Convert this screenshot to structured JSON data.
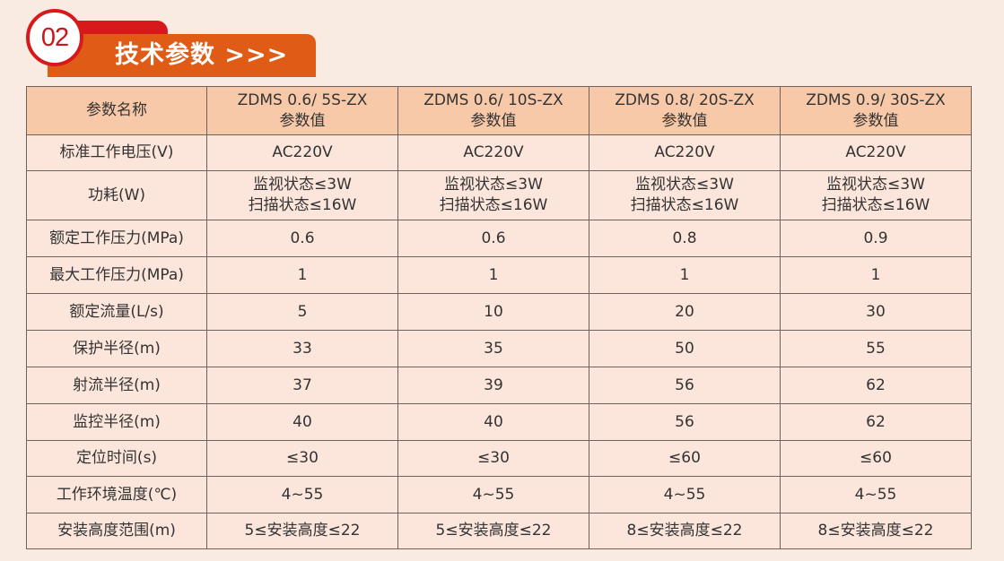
{
  "section": {
    "number": "02",
    "title": "技术参数 >>>"
  },
  "colors": {
    "accent_red": "#d8191c",
    "accent_orange": "#e05c16",
    "header_bg": "#f8c9a8",
    "cell_bg": "#fce6dc"
  },
  "table": {
    "headers": [
      [
        "参数名称"
      ],
      [
        "ZDMS 0.6/ 5S-ZX",
        "参数值"
      ],
      [
        "ZDMS 0.6/ 10S-ZX",
        "参数值"
      ],
      [
        "ZDMS 0.8/ 20S-ZX",
        "参数值"
      ],
      [
        "ZDMS 0.9/ 30S-ZX",
        "参数值"
      ]
    ],
    "rows": [
      [
        [
          "标准工作电压(V)"
        ],
        [
          "AC220V"
        ],
        [
          "AC220V"
        ],
        [
          "AC220V"
        ],
        [
          "AC220V"
        ]
      ],
      [
        [
          "功耗(W)"
        ],
        [
          "监视状态≤3W",
          "扫描状态≤16W"
        ],
        [
          "监视状态≤3W",
          "扫描状态≤16W"
        ],
        [
          "监视状态≤3W",
          "扫描状态≤16W"
        ],
        [
          "监视状态≤3W",
          "扫描状态≤16W"
        ]
      ],
      [
        [
          "额定工作压力(MPa)"
        ],
        [
          "0.6"
        ],
        [
          "0.6"
        ],
        [
          "0.8"
        ],
        [
          "0.9"
        ]
      ],
      [
        [
          "最大工作压力(MPa)"
        ],
        [
          "1"
        ],
        [
          "1"
        ],
        [
          "1"
        ],
        [
          "1"
        ]
      ],
      [
        [
          "额定流量(L/s)"
        ],
        [
          "5"
        ],
        [
          "10"
        ],
        [
          "20"
        ],
        [
          "30"
        ]
      ],
      [
        [
          "保护半径(m)"
        ],
        [
          "33"
        ],
        [
          "35"
        ],
        [
          "50"
        ],
        [
          "55"
        ]
      ],
      [
        [
          "射流半径(m)"
        ],
        [
          "37"
        ],
        [
          "39"
        ],
        [
          "56"
        ],
        [
          "62"
        ]
      ],
      [
        [
          "监控半径(m)"
        ],
        [
          "40"
        ],
        [
          "40"
        ],
        [
          "56"
        ],
        [
          "62"
        ]
      ],
      [
        [
          "定位时间(s)"
        ],
        [
          "≤30"
        ],
        [
          "≤30"
        ],
        [
          "≤60"
        ],
        [
          "≤60"
        ]
      ],
      [
        [
          "工作环境温度(℃)"
        ],
        [
          "4~55"
        ],
        [
          "4~55"
        ],
        [
          "4~55"
        ],
        [
          "4~55"
        ]
      ],
      [
        [
          "安装高度范围(m)"
        ],
        [
          "5≤安装高度≤22"
        ],
        [
          "5≤安装高度≤22"
        ],
        [
          "8≤安装高度≤22"
        ],
        [
          "8≤安装高度≤22"
        ]
      ]
    ]
  }
}
